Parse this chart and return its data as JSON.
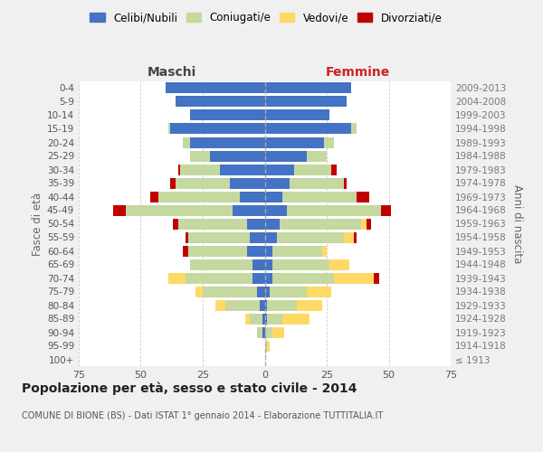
{
  "age_groups": [
    "100+",
    "95-99",
    "90-94",
    "85-89",
    "80-84",
    "75-79",
    "70-74",
    "65-69",
    "60-64",
    "55-59",
    "50-54",
    "45-49",
    "40-44",
    "35-39",
    "30-34",
    "25-29",
    "20-24",
    "15-19",
    "10-14",
    "5-9",
    "0-4"
  ],
  "birth_years": [
    "≤ 1913",
    "1914-1918",
    "1919-1923",
    "1924-1928",
    "1929-1933",
    "1934-1938",
    "1939-1943",
    "1944-1948",
    "1949-1953",
    "1954-1958",
    "1959-1963",
    "1964-1968",
    "1969-1973",
    "1974-1978",
    "1979-1983",
    "1984-1988",
    "1989-1993",
    "1994-1998",
    "1999-2003",
    "2004-2008",
    "2009-2013"
  ],
  "males": {
    "celibi": [
      0,
      0,
      1,
      1,
      2,
      3,
      5,
      5,
      7,
      6,
      7,
      13,
      10,
      14,
      18,
      22,
      30,
      38,
      30,
      36,
      40
    ],
    "coniugati": [
      0,
      0,
      2,
      5,
      14,
      22,
      27,
      25,
      24,
      25,
      28,
      43,
      33,
      22,
      16,
      8,
      3,
      1,
      0,
      0,
      0
    ],
    "vedovi": [
      0,
      0,
      0,
      2,
      4,
      3,
      7,
      0,
      0,
      0,
      0,
      0,
      0,
      0,
      0,
      0,
      0,
      0,
      0,
      0,
      0
    ],
    "divorziati": [
      0,
      0,
      0,
      0,
      0,
      0,
      0,
      0,
      2,
      1,
      2,
      5,
      3,
      2,
      1,
      0,
      0,
      0,
      0,
      0,
      0
    ]
  },
  "females": {
    "nubili": [
      0,
      0,
      0,
      1,
      1,
      2,
      3,
      3,
      3,
      5,
      6,
      9,
      7,
      10,
      12,
      17,
      24,
      35,
      26,
      33,
      35
    ],
    "coniugate": [
      0,
      1,
      3,
      6,
      12,
      15,
      25,
      23,
      20,
      27,
      33,
      38,
      30,
      22,
      15,
      8,
      4,
      2,
      0,
      0,
      0
    ],
    "vedove": [
      0,
      1,
      5,
      11,
      10,
      10,
      16,
      8,
      2,
      4,
      2,
      0,
      0,
      0,
      0,
      0,
      0,
      0,
      0,
      0,
      0
    ],
    "divorziate": [
      0,
      0,
      0,
      0,
      0,
      0,
      2,
      0,
      0,
      1,
      2,
      4,
      5,
      1,
      2,
      0,
      0,
      0,
      0,
      0,
      0
    ]
  },
  "colors": {
    "celibi": "#4472C4",
    "coniugati": "#C5D8A0",
    "vedovi": "#FFD966",
    "divorziati": "#C00000"
  },
  "legend_labels": [
    "Celibi/Nubili",
    "Coniugati/e",
    "Vedovi/e",
    "Divorziati/e"
  ],
  "title": "Popolazione per età, sesso e stato civile - 2014",
  "subtitle": "COMUNE DI BIONE (BS) - Dati ISTAT 1° gennaio 2014 - Elaborazione TUTTITALIA.IT",
  "xlabel_left": "Maschi",
  "xlabel_right": "Femmine",
  "ylabel_left": "Fasce di età",
  "ylabel_right": "Anni di nascita",
  "xlim": 75,
  "bg_color": "#f0f0f0",
  "plot_bg_color": "#ffffff",
  "grid_color": "#cccccc"
}
